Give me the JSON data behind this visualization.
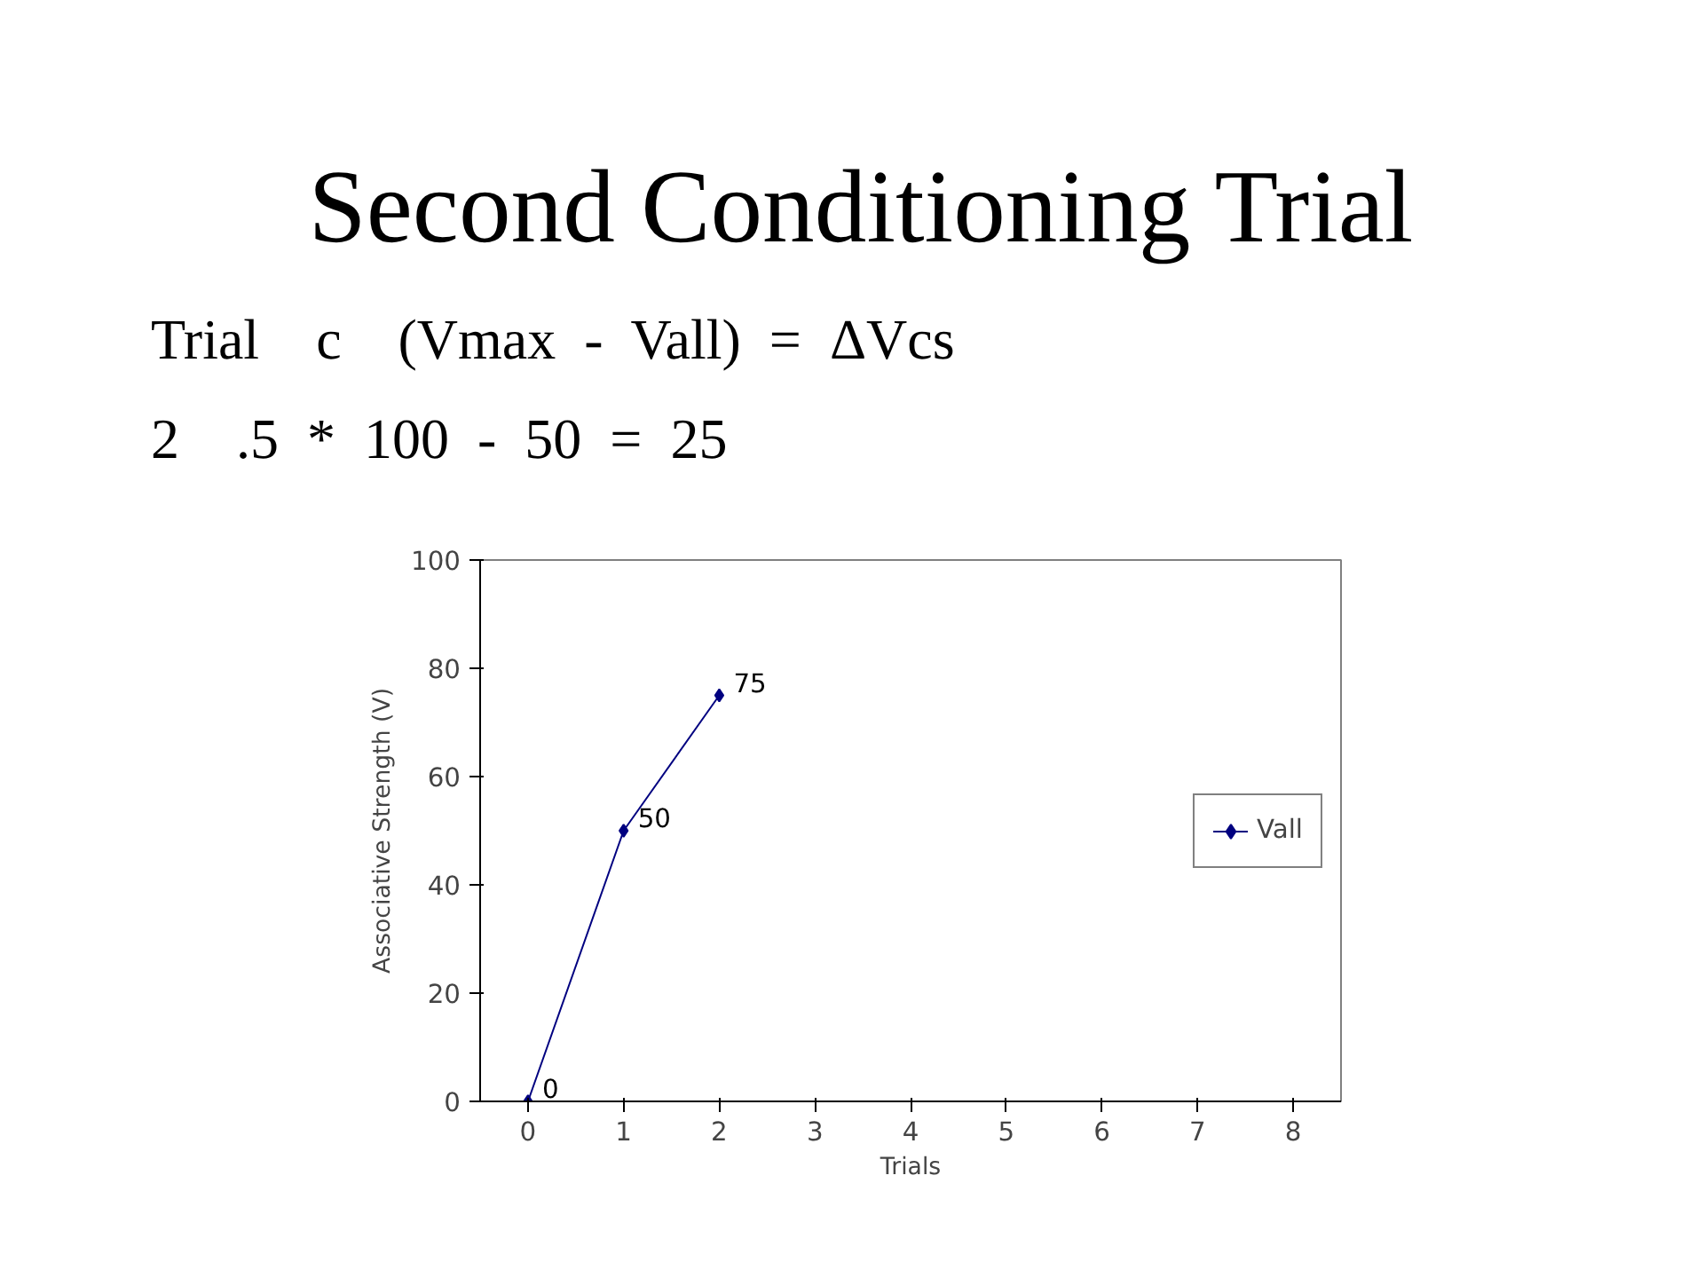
{
  "chart_data": {
    "type": "line",
    "title": "Second Conditioning Trial",
    "annotations": [
      "Trial    c    (Vmax  -  Vall)  =  ΔVcs",
      "2    .5  *  100  -  50  =  25"
    ],
    "categories": [
      "0",
      "1",
      "2",
      "3",
      "4",
      "5",
      "6",
      "7",
      "8"
    ],
    "series": [
      {
        "name": "Vall",
        "color": "#000080",
        "values": [
          0,
          50,
          75,
          null,
          null,
          null,
          null,
          null,
          null
        ]
      }
    ],
    "xlabel": "Trials",
    "ylabel": "Associative Strength (V)",
    "ylim": [
      0,
      100
    ],
    "yticks": [
      0,
      20,
      40,
      60,
      80,
      100
    ],
    "data_labels": true,
    "legend": "right",
    "marker": "diamond",
    "grid": false
  }
}
